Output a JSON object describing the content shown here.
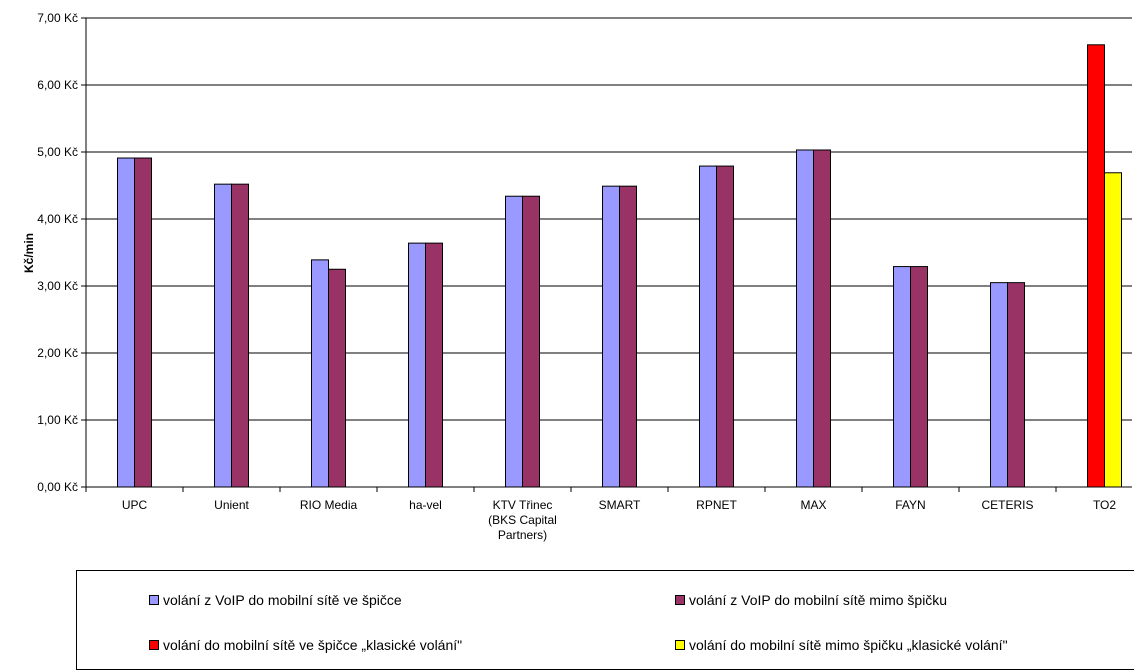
{
  "chart_data": {
    "type": "bar",
    "ylabel": "Kč/min",
    "xlabel": "",
    "ylim": [
      0,
      7
    ],
    "yticks": [
      "0,00 Kč",
      "1,00 Kč",
      "2,00 Kč",
      "3,00 Kč",
      "4,00 Kč",
      "5,00 Kč",
      "6,00 Kč",
      "7,00 Kč"
    ],
    "grid": true,
    "legend_position": "bottom",
    "categories": [
      [
        "UPC"
      ],
      [
        "Unient"
      ],
      [
        "RIO Media"
      ],
      [
        "ha-vel"
      ],
      [
        "KTV Třinec",
        "(BKS Capital",
        "Partners)"
      ],
      [
        "SMART"
      ],
      [
        "RPNET"
      ],
      [
        "MAX"
      ],
      [
        "FAYN"
      ],
      [
        "CETERIS"
      ],
      [
        "TO2"
      ]
    ],
    "series": [
      {
        "name": "volání z VoIP do mobilní sítě ve špičce",
        "color": "#9999ff",
        "values": [
          4.91,
          4.52,
          3.39,
          3.64,
          4.34,
          4.49,
          4.79,
          5.03,
          3.29,
          3.05,
          null
        ]
      },
      {
        "name": "volání z VoIP do mobilní sítě mimo špičku",
        "color": "#993366",
        "values": [
          4.91,
          4.52,
          3.25,
          3.64,
          4.34,
          4.49,
          4.79,
          5.03,
          3.29,
          3.05,
          null
        ]
      },
      {
        "name": "volání do mobilní sítě ve špičce „klasické volání\"",
        "color": "#ff0000",
        "values": [
          null,
          null,
          null,
          null,
          null,
          null,
          null,
          null,
          null,
          null,
          6.6
        ]
      },
      {
        "name": "volání do mobilní sítě mimo špičku „klasické volání\"",
        "color": "#ffff00",
        "values": [
          null,
          null,
          null,
          null,
          null,
          null,
          null,
          null,
          null,
          null,
          4.69
        ]
      }
    ]
  }
}
